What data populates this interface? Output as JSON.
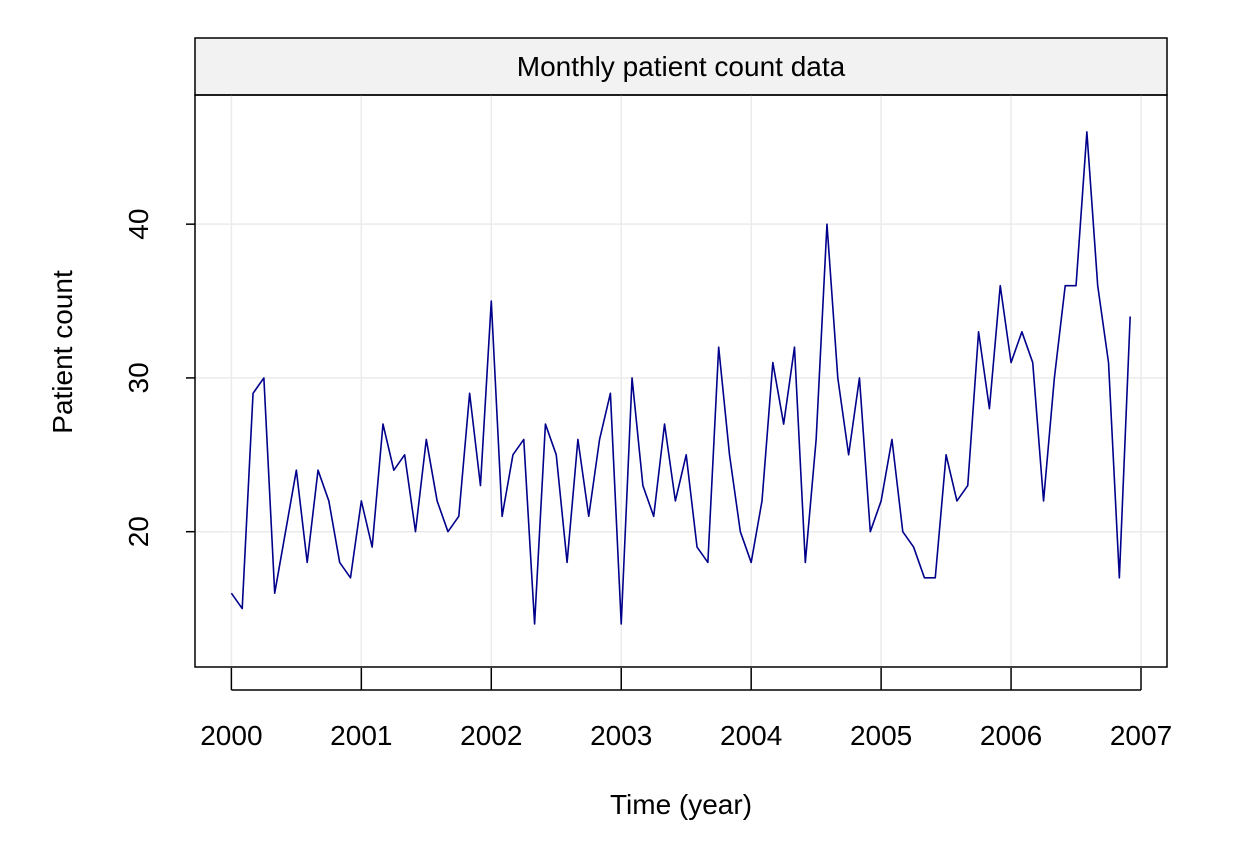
{
  "chart_data": {
    "type": "line",
    "title": "Monthly patient count data",
    "xlabel": "Time (year)",
    "ylabel": "Patient count",
    "xlim": [
      1999.72,
      2007.2
    ],
    "ylim": [
      11.2,
      48.4
    ],
    "x_ticks": [
      2000,
      2001,
      2002,
      2003,
      2004,
      2005,
      2006,
      2007
    ],
    "x_tick_labels": [
      "2000",
      "2001",
      "2002",
      "2003",
      "2004",
      "2005",
      "2006",
      "2007"
    ],
    "y_ticks": [
      20,
      30,
      40
    ],
    "y_tick_labels": [
      "20",
      "30",
      "40"
    ],
    "grid": true,
    "start": {
      "year": 2000,
      "month": 1
    },
    "series": [
      {
        "color": "#00008B",
        "values": [
          16,
          15,
          29,
          30,
          16,
          20,
          24,
          18,
          24,
          22,
          18,
          17,
          22,
          19,
          27,
          24,
          25,
          20,
          26,
          22,
          20,
          21,
          29,
          23,
          35,
          21,
          25,
          26,
          14,
          27,
          25,
          18,
          26,
          21,
          26,
          29,
          14,
          30,
          23,
          21,
          27,
          22,
          25,
          19,
          18,
          32,
          25,
          20,
          18,
          22,
          31,
          27,
          32,
          18,
          26,
          40,
          30,
          25,
          30,
          20,
          22,
          26,
          20,
          19,
          17,
          17,
          25,
          22,
          23,
          33,
          28,
          36,
          31,
          33,
          31,
          22,
          30,
          36,
          36,
          46,
          36,
          31,
          17,
          34
        ]
      }
    ]
  }
}
